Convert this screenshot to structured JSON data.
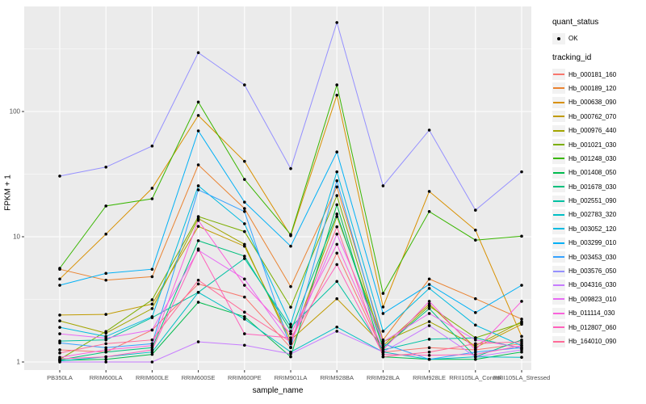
{
  "figure": {
    "bg": "#FFFFFF",
    "panel_bg": "#EBEBEB",
    "grid_major_color": "#FFFFFF",
    "grid_minor_color": "#FFFFFF",
    "point_color": "#000000",
    "axis_text_color": "#4D4D4D",
    "tick_color": "#333333"
  },
  "legend": {
    "quant_title": "quant_status",
    "quant_items": [
      {
        "label": "OK",
        "marker": "point"
      }
    ],
    "tracking_title": "tracking_id"
  },
  "chart_data": {
    "type": "line",
    "title": "",
    "xlabel": "sample_name",
    "ylabel": "FPKM + 1",
    "y_scale": "log10",
    "y_ticks": [
      1,
      10,
      100
    ],
    "y_minor_ticks": [
      3.162,
      31.62,
      316.2
    ],
    "ylim": [
      1,
      700
    ],
    "grid": true,
    "legend_position": "right",
    "marker": "black-point-all-vertices",
    "categories": [
      "PB350LA",
      "RRIM600LA",
      "RRIM600LE",
      "RRIM600SE",
      "RRIM600PE",
      "RRIM901LA",
      "RRIM928BA",
      "RRIM928LA",
      "RRIM928LE",
      "RRII105LA_Control",
      "RRII105LA_Stressed"
    ],
    "series": [
      {
        "name": "Hb_000181_160",
        "color": "#F8766D",
        "values": [
          1.25,
          1.2,
          1.8,
          4.2,
          3.3,
          1.3,
          7.4,
          1.2,
          1.3,
          1.25,
          1.4
        ]
      },
      {
        "name": "Hb_000189_120",
        "color": "#EA8331",
        "values": [
          5.5,
          4.5,
          4.8,
          37.5,
          16.8,
          4.0,
          25,
          1.5,
          4.6,
          3.2,
          2.2
        ]
      },
      {
        "name": "Hb_000638_090",
        "color": "#D89000",
        "values": [
          4.6,
          10.5,
          24.4,
          93,
          40,
          10.2,
          135,
          2.75,
          23,
          11.3,
          1.6
        ]
      },
      {
        "name": "Hb_000762_070",
        "color": "#C09B00",
        "values": [
          2.37,
          2.4,
          2.9,
          12.1,
          8.4,
          1.5,
          3.2,
          1.35,
          2.9,
          1.3,
          2.0
        ]
      },
      {
        "name": "Hb_000976_440",
        "color": "#A3A500",
        "values": [
          2.13,
          1.7,
          2.67,
          14,
          8.7,
          1.4,
          14.5,
          1.45,
          2.1,
          1.35,
          2.1
        ]
      },
      {
        "name": "Hb_001021_030",
        "color": "#7CAE00",
        "values": [
          1.05,
          1.75,
          3.14,
          14.5,
          11,
          2.74,
          21.3,
          1.3,
          2.8,
          1.56,
          2.05
        ]
      },
      {
        "name": "Hb_001248_030",
        "color": "#39B600",
        "values": [
          5.6,
          17.6,
          20.1,
          119,
          28.7,
          10.4,
          163,
          3.53,
          15.9,
          9.4,
          10.1
        ]
      },
      {
        "name": "Hb_001408_050",
        "color": "#00BB4E",
        "values": [
          1.03,
          1.05,
          1.15,
          3.0,
          2.3,
          1.1,
          18,
          1.1,
          1.05,
          1.05,
          1.2
        ]
      },
      {
        "name": "Hb_001678_030",
        "color": "#00BF7D",
        "values": [
          1.04,
          1.2,
          1.3,
          9.3,
          7.0,
          1.76,
          15.2,
          1.3,
          2.67,
          1.1,
          1.5
        ]
      },
      {
        "name": "Hb_002551_090",
        "color": "#00C1A3",
        "values": [
          1.47,
          1.5,
          2.26,
          3.6,
          6.7,
          1.9,
          4.4,
          1.25,
          1.52,
          1.56,
          1.28
        ]
      },
      {
        "name": "Hb_002783_320",
        "color": "#00BFC4",
        "values": [
          1.02,
          1.1,
          1.2,
          3.6,
          2.2,
          1.2,
          1.9,
          1.2,
          1.05,
          1.1,
          1.09
        ]
      },
      {
        "name": "Hb_003052_120",
        "color": "#00BAE0",
        "values": [
          1.89,
          1.6,
          2.3,
          25.5,
          12.7,
          2.0,
          33,
          1.76,
          3.87,
          1.97,
          1.35
        ]
      },
      {
        "name": "Hb_003299_010",
        "color": "#00B0F6",
        "values": [
          4.1,
          5.1,
          5.5,
          70,
          18.9,
          8.4,
          47.5,
          2.44,
          4.16,
          2.48,
          4.1
        ]
      },
      {
        "name": "Hb_003453_030",
        "color": "#35A2FF",
        "values": [
          1.42,
          1.3,
          1.4,
          23.7,
          15.9,
          1.31,
          28,
          1.4,
          1.05,
          1.2,
          1.3
        ]
      },
      {
        "name": "Hb_003576_050",
        "color": "#9590FF",
        "values": [
          30.5,
          36,
          53,
          295,
          163,
          35,
          513,
          25.5,
          71,
          16.3,
          33
        ]
      },
      {
        "name": "Hb_004316_030",
        "color": "#C77CFF",
        "values": [
          1.0,
          1.0,
          1.0,
          1.45,
          1.36,
          1.16,
          1.76,
          1.2,
          1.95,
          1.1,
          1.25
        ]
      },
      {
        "name": "Hb_009823_010",
        "color": "#E76BF3",
        "values": [
          1.68,
          1.55,
          1.8,
          7.8,
          4.6,
          1.41,
          10.5,
          1.45,
          2.44,
          1.5,
          1.3
        ]
      },
      {
        "name": "Hb_011114_030",
        "color": "#FA62DB",
        "values": [
          1.09,
          1.25,
          1.35,
          13.5,
          4.1,
          1.68,
          8.7,
          1.25,
          3.05,
          1.25,
          3.05
        ]
      },
      {
        "name": "Hb_012807_060",
        "color": "#FF62BC",
        "values": [
          1.06,
          1.1,
          1.25,
          8.0,
          1.68,
          1.56,
          6.0,
          1.15,
          1.13,
          1.15,
          1.35
        ]
      },
      {
        "name": "Hb_164010_090",
        "color": "#FF6A98",
        "values": [
          1.18,
          1.4,
          1.5,
          4.5,
          2.5,
          1.45,
          12,
          1.1,
          1.2,
          1.4,
          1.45
        ]
      }
    ]
  }
}
